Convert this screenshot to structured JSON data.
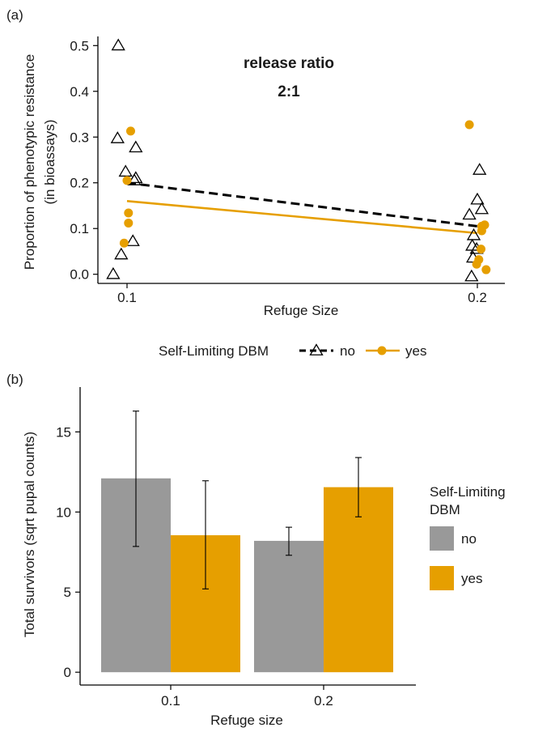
{
  "colors": {
    "no": "#000000",
    "yes": "#E69F00",
    "bar_no": "#999999",
    "bar_yes": "#E69F00"
  },
  "chart_data": [
    {
      "type": "scatter",
      "panel_label": "(a)",
      "title": "release ratio",
      "subtitle": "2:1",
      "xlabel": "Refuge Size",
      "ylabel": [
        "Proportion of phenotypic resistance",
        "(in bioassays)"
      ],
      "x_ticks": [
        "0.1",
        "0.2"
      ],
      "y_ticks": [
        "0.0",
        "0.1",
        "0.2",
        "0.3",
        "0.4",
        "0.5"
      ],
      "ylim": [
        -0.02,
        0.52
      ],
      "legend": {
        "title": "Self-Limiting DBM",
        "entries": [
          "no",
          "yes"
        ],
        "position": "bottom"
      },
      "grid": false,
      "series": [
        {
          "name": "no",
          "marker": "open-triangle",
          "line": "dashed",
          "fit": {
            "x": [
              0.1,
              0.2
            ],
            "y": [
              0.2,
              0.105
            ]
          },
          "points": [
            {
              "x": 0.1,
              "jitter": -0.6,
              "y": 0.5
            },
            {
              "x": 0.1,
              "jitter": -0.65,
              "y": 0.297
            },
            {
              "x": 0.1,
              "jitter": 0.6,
              "y": 0.277
            },
            {
              "x": 0.1,
              "jitter": -0.1,
              "y": 0.224
            },
            {
              "x": 0.1,
              "jitter": 0.6,
              "y": 0.21
            },
            {
              "x": 0.1,
              "jitter": 0.5,
              "y": 0.205
            },
            {
              "x": 0.1,
              "jitter": -0.4,
              "y": 0.043
            },
            {
              "x": 0.1,
              "jitter": 0.4,
              "y": 0.072
            },
            {
              "x": 0.1,
              "jitter": -0.95,
              "y": 0.0
            },
            {
              "x": 0.2,
              "jitter": 0.15,
              "y": 0.228
            },
            {
              "x": 0.2,
              "jitter": 0.0,
              "y": 0.163
            },
            {
              "x": 0.2,
              "jitter": 0.3,
              "y": 0.142
            },
            {
              "x": 0.2,
              "jitter": -0.55,
              "y": 0.13
            },
            {
              "x": 0.2,
              "jitter": -0.25,
              "y": 0.085
            },
            {
              "x": 0.2,
              "jitter": -0.35,
              "y": 0.062
            },
            {
              "x": 0.2,
              "jitter": -0.05,
              "y": 0.055
            },
            {
              "x": 0.2,
              "jitter": -0.3,
              "y": 0.036
            },
            {
              "x": 0.2,
              "jitter": -0.4,
              "y": -0.005
            }
          ]
        },
        {
          "name": "yes",
          "marker": "filled-circle",
          "line": "solid",
          "fit": {
            "x": [
              0.1,
              0.2
            ],
            "y": [
              0.16,
              0.09
            ]
          },
          "points": [
            {
              "x": 0.1,
              "jitter": 0.25,
              "y": 0.313
            },
            {
              "x": 0.1,
              "jitter": 0.0,
              "y": 0.205
            },
            {
              "x": 0.1,
              "jitter": 0.1,
              "y": 0.134
            },
            {
              "x": 0.1,
              "jitter": 0.1,
              "y": 0.112
            },
            {
              "x": 0.1,
              "jitter": -0.2,
              "y": 0.068
            },
            {
              "x": 0.2,
              "jitter": -0.55,
              "y": 0.327
            },
            {
              "x": 0.2,
              "jitter": 0.5,
              "y": 0.108
            },
            {
              "x": 0.2,
              "jitter": 0.3,
              "y": 0.105
            },
            {
              "x": 0.2,
              "jitter": 0.3,
              "y": 0.095
            },
            {
              "x": 0.2,
              "jitter": 0.25,
              "y": 0.055
            },
            {
              "x": 0.2,
              "jitter": 0.1,
              "y": 0.032
            },
            {
              "x": 0.2,
              "jitter": -0.05,
              "y": 0.022
            },
            {
              "x": 0.2,
              "jitter": 0.6,
              "y": 0.01
            }
          ]
        }
      ]
    },
    {
      "type": "bar",
      "panel_label": "(b)",
      "xlabel": "Refuge size",
      "ylabel": "Total survivors (sqrt pupal counts)",
      "categories": [
        "0.1",
        "0.2"
      ],
      "y_ticks": [
        "0",
        "5",
        "10",
        "15"
      ],
      "ylim": [
        -0.8,
        17.8
      ],
      "legend": {
        "title_lines": [
          "Self-Limiting",
          "DBM"
        ],
        "entries": [
          "no",
          "yes"
        ],
        "position": "right"
      },
      "grid": false,
      "series": [
        {
          "name": "no",
          "values": [
            12.1,
            8.2
          ],
          "error_low": [
            7.85,
            7.3
          ],
          "error_high": [
            16.3,
            9.05
          ]
        },
        {
          "name": "yes",
          "values": [
            8.55,
            11.55
          ],
          "error_low": [
            5.2,
            9.7
          ],
          "error_high": [
            11.95,
            13.4
          ]
        }
      ]
    }
  ]
}
